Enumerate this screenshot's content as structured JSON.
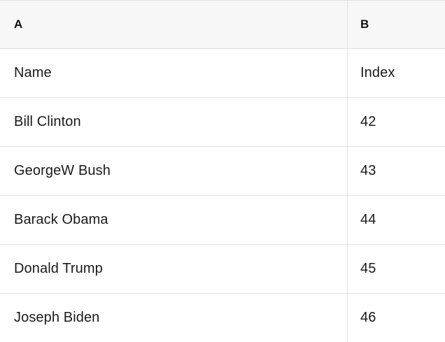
{
  "table": {
    "column_headers": [
      "A",
      "B"
    ],
    "rows": [
      [
        "Name",
        "Index"
      ],
      [
        "Bill Clinton",
        "42"
      ],
      [
        "GeorgeW Bush",
        "43"
      ],
      [
        "Barack Obama",
        "44"
      ],
      [
        "Donald Trump",
        "45"
      ],
      [
        "Joseph Biden",
        "46"
      ]
    ],
    "colors": {
      "header_bg": "#f7f7f7",
      "grid_border": "#e0e0e0",
      "row_bg": "#ffffff",
      "text": "#1a1a1a"
    }
  }
}
